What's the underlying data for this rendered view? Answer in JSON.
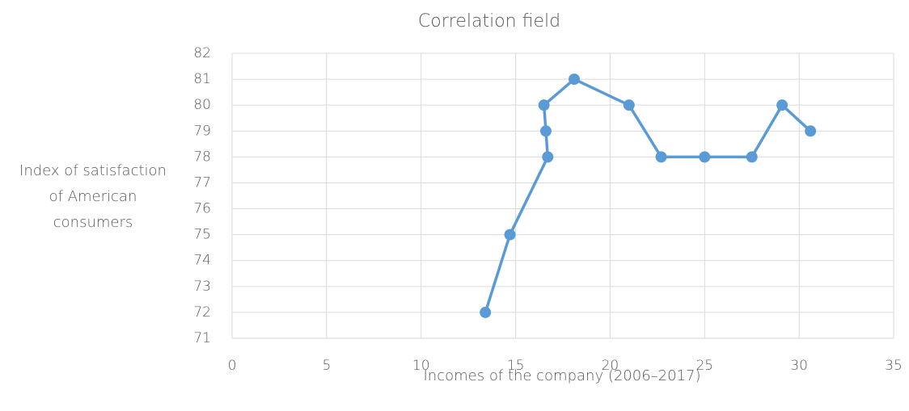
{
  "chart_data": {
    "type": "line",
    "title": "Correlation field",
    "xlabel": "Incomes of the company (2006–2017)",
    "ylabel": [
      "Index of satisfaction",
      "of American",
      "consumers"
    ],
    "x": [
      13.4,
      14.7,
      16.7,
      16.6,
      16.5,
      18.1,
      21.0,
      22.7,
      25.0,
      27.5,
      29.1,
      30.6
    ],
    "series": [
      {
        "color": "#5b9bd5",
        "values": [
          72,
          75,
          78,
          79,
          80,
          81,
          80,
          78,
          78,
          78,
          80,
          79
        ]
      }
    ],
    "xlim": [
      0,
      35
    ],
    "xticks": [
      0,
      5,
      10,
      15,
      20,
      25,
      30,
      35
    ],
    "ylim": [
      71,
      82
    ],
    "yticks": [
      71,
      72,
      73,
      74,
      75,
      76,
      77,
      78,
      79,
      80,
      81,
      82
    ],
    "grid": true
  }
}
